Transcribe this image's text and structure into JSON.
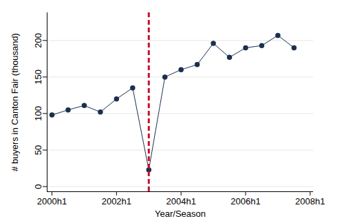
{
  "chart_data": {
    "type": "line",
    "x_label": "Year/Season",
    "y_label": "# buyers in Canton Fair (thousand)",
    "x": [
      2000,
      2000.5,
      2001,
      2001.5,
      2002,
      2002.5,
      2003,
      2003.5,
      2004,
      2004.5,
      2005,
      2005.5,
      2006,
      2006.5,
      2007,
      2007.5
    ],
    "series": [
      {
        "name": "# buyers in Canton Fair (thousand)",
        "color": "#1c2f4f",
        "marker": "circle",
        "values": [
          98,
          105,
          111,
          102,
          120,
          135,
          23,
          150,
          160,
          167,
          196,
          177,
          190,
          193,
          207,
          190
        ]
      }
    ],
    "xlim": [
      1999.85,
      2008.1
    ],
    "xticks": [
      {
        "value": 2000,
        "label": "2000h1"
      },
      {
        "value": 2002,
        "label": "2002h1"
      },
      {
        "value": 2004,
        "label": "2004h1"
      },
      {
        "value": 2006,
        "label": "2006h1"
      },
      {
        "value": 2008,
        "label": "2008h1"
      }
    ],
    "ylim": [
      -7,
      238
    ],
    "yticks": [
      0,
      50,
      100,
      150,
      200
    ],
    "grid": true,
    "reference_line": {
      "x": 2003,
      "color": "#c8102e",
      "line_style": "dashed"
    }
  }
}
